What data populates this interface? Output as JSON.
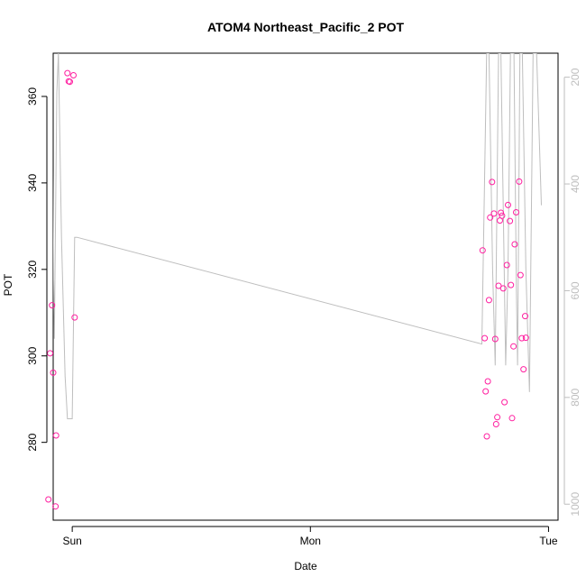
{
  "chart_data": {
    "type": "scatter",
    "title": "ATOM4 Northeast_Pacific_2 POT",
    "xlabel": "Date",
    "ylabel": "POT",
    "x_ticks": [
      "Sun",
      "Mon",
      "Tue"
    ],
    "x_tick_values": [
      0,
      1,
      2
    ],
    "xlim": [
      -0.08,
      2.04
    ],
    "ylim": [
      262,
      370
    ],
    "y_ticks": [
      280,
      300,
      320,
      340,
      360
    ],
    "y2lim": [
      1030,
      155
    ],
    "y2_ticks": [
      200,
      400,
      600,
      800,
      1000
    ],
    "grid": false,
    "colors": {
      "points": "#ff1fa0",
      "line": "#bebebe",
      "right_axis": "#bebebe",
      "axis": "#000000"
    },
    "series": [
      {
        "type": "scatter",
        "points": [
          [
            -0.1,
            266.8
          ],
          [
            -0.093,
            300.6
          ],
          [
            -0.085,
            311.7
          ],
          [
            -0.08,
            296.1
          ],
          [
            -0.07,
            265.2
          ],
          [
            -0.068,
            281.6
          ],
          [
            -0.02,
            365.4
          ],
          [
            -0.015,
            363.5
          ],
          [
            -0.01,
            363.4
          ],
          [
            0.005,
            364.9
          ],
          [
            0.01,
            308.9
          ],
          [
            1.723,
            324.4
          ],
          [
            1.732,
            304.1
          ],
          [
            1.736,
            291.8
          ],
          [
            1.741,
            281.4
          ],
          [
            1.745,
            294.1
          ],
          [
            1.75,
            312.9
          ],
          [
            1.755,
            332.0
          ],
          [
            1.763,
            340.2
          ],
          [
            1.771,
            332.9
          ],
          [
            1.776,
            303.9
          ],
          [
            1.78,
            284.2
          ],
          [
            1.785,
            285.8
          ],
          [
            1.79,
            316.2
          ],
          [
            1.796,
            331.3
          ],
          [
            1.8,
            333.1
          ],
          [
            1.805,
            332.4
          ],
          [
            1.81,
            315.6
          ],
          [
            1.815,
            289.3
          ],
          [
            1.825,
            321.0
          ],
          [
            1.83,
            334.9
          ],
          [
            1.838,
            331.2
          ],
          [
            1.842,
            316.4
          ],
          [
            1.847,
            285.6
          ],
          [
            1.853,
            302.2
          ],
          [
            1.858,
            325.8
          ],
          [
            1.864,
            333.2
          ],
          [
            1.877,
            340.3
          ],
          [
            1.882,
            318.7
          ],
          [
            1.888,
            304.1
          ],
          [
            1.895,
            296.9
          ],
          [
            1.902,
            309.2
          ],
          [
            1.905,
            304.2
          ]
        ]
      },
      {
        "type": "line",
        "axis": "right",
        "points": [
          [
            -0.085,
            155
          ],
          [
            -0.08,
            510
          ],
          [
            -0.075,
            690
          ],
          [
            -0.065,
            230
          ],
          [
            -0.058,
            155
          ],
          [
            -0.045,
            500
          ],
          [
            -0.03,
            760
          ],
          [
            -0.02,
            840
          ],
          [
            0.0,
            840
          ],
          [
            0.01,
            500
          ],
          [
            0.02,
            500
          ],
          [
            1.72,
            700
          ],
          [
            1.74,
            155
          ],
          [
            1.75,
            155
          ],
          [
            1.765,
            560
          ],
          [
            1.776,
            740
          ],
          [
            1.79,
            155
          ],
          [
            1.8,
            155
          ],
          [
            1.82,
            740
          ],
          [
            1.83,
            560
          ],
          [
            1.84,
            155
          ],
          [
            1.855,
            155
          ],
          [
            1.865,
            600
          ],
          [
            1.87,
            740
          ],
          [
            1.88,
            155
          ],
          [
            1.89,
            155
          ],
          [
            1.905,
            560
          ],
          [
            1.92,
            790
          ],
          [
            1.935,
            155
          ],
          [
            1.95,
            155
          ],
          [
            1.97,
            440
          ]
        ]
      }
    ]
  }
}
